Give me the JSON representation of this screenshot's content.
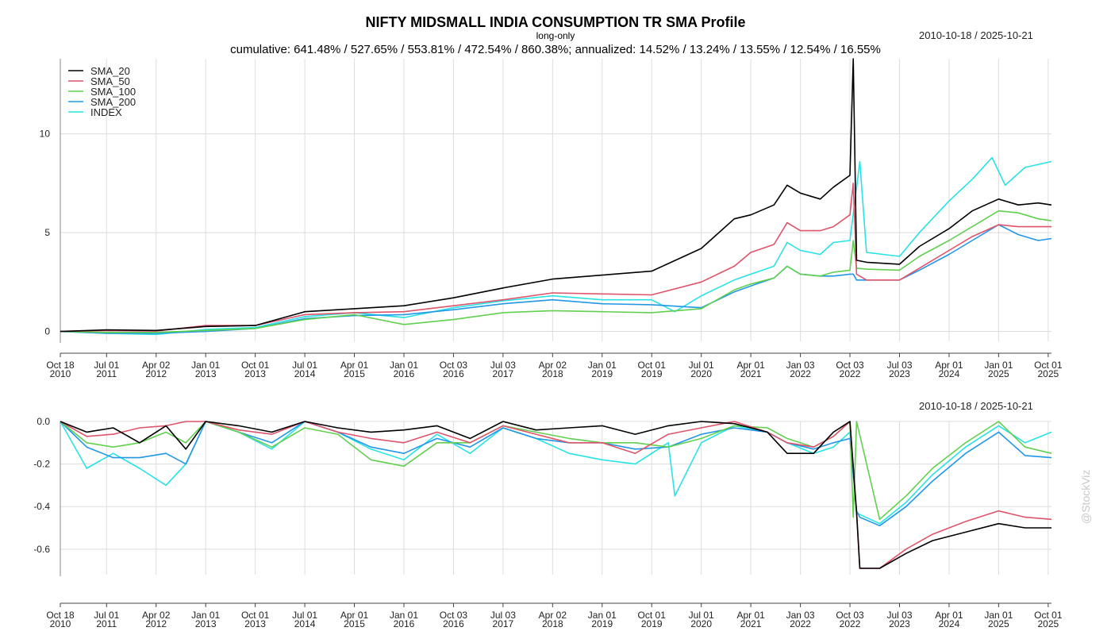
{
  "header": {
    "title": "NIFTY MIDSMALL INDIA CONSUMPTION TR SMA Profile",
    "subtitle": "long-only",
    "stats": "cumulative: 641.48% / 527.65% / 553.81% / 472.54% / 860.38%; annualized: 14.52% / 13.24% / 13.55% / 12.54% / 16.55%",
    "date_range_top": "2010-10-18 / 2025-10-21",
    "date_range_bottom": "2010-10-18 / 2025-10-21",
    "watermark": "@StockViz"
  },
  "colors": {
    "SMA_20": "#000000",
    "SMA_50": "#DF536B",
    "SMA_100": "#61D04F",
    "SMA_200": "#2297E6",
    "INDEX": "#28E2E5",
    "grid": "#dddddd"
  },
  "chart_data": [
    {
      "type": "line",
      "panel": "cumulative",
      "x_tick_labels": [
        [
          "Oct 18",
          "2010"
        ],
        [
          "Jul 01",
          "2011"
        ],
        [
          "Apr 02",
          "2012"
        ],
        [
          "Jan 01",
          "2013"
        ],
        [
          "Oct 01",
          "2013"
        ],
        [
          "Jul 01",
          "2014"
        ],
        [
          "Apr 01",
          "2015"
        ],
        [
          "Jan 01",
          "2016"
        ],
        [
          "Oct 03",
          "2016"
        ],
        [
          "Jul 03",
          "2017"
        ],
        [
          "Apr 02",
          "2018"
        ],
        [
          "Jan 01",
          "2019"
        ],
        [
          "Oct 01",
          "2019"
        ],
        [
          "Jul 01",
          "2020"
        ],
        [
          "Apr 01",
          "2021"
        ],
        [
          "Jan 03",
          "2022"
        ],
        [
          "Oct 03",
          "2022"
        ],
        [
          "Jul 03",
          "2023"
        ],
        [
          "Apr 01",
          "2024"
        ],
        [
          "Jan 01",
          "2025"
        ],
        [
          "Oct 01",
          "2025"
        ]
      ],
      "x_tick_positions": [
        2010.8,
        2011.5,
        2012.25,
        2013.0,
        2013.75,
        2014.5,
        2015.25,
        2016.0,
        2016.75,
        2017.5,
        2018.25,
        2019.0,
        2019.75,
        2020.5,
        2021.25,
        2022.0,
        2022.75,
        2023.5,
        2024.25,
        2025.0,
        2025.75
      ],
      "xlim": [
        2010.8,
        2025.8
      ],
      "y_ticks": [
        0,
        5,
        10
      ],
      "ylim": [
        -0.5,
        13.8
      ],
      "grid": true,
      "legend_position": "top-left",
      "series": [
        {
          "name": "SMA_20",
          "x": [
            2010.8,
            2011.5,
            2012.25,
            2013.0,
            2013.75,
            2014.5,
            2015.25,
            2016.0,
            2016.75,
            2017.5,
            2018.25,
            2019.0,
            2019.75,
            2020.5,
            2021.0,
            2021.25,
            2021.6,
            2021.8,
            2022.0,
            2022.3,
            2022.5,
            2022.75,
            2022.8,
            2022.85,
            2023.0,
            2023.5,
            2023.8,
            2024.25,
            2024.6,
            2025.0,
            2025.3,
            2025.6,
            2025.8
          ],
          "values": [
            0.0,
            0.08,
            0.05,
            0.25,
            0.3,
            1.0,
            1.15,
            1.3,
            1.7,
            2.2,
            2.65,
            2.85,
            3.05,
            4.2,
            5.7,
            5.9,
            6.4,
            7.4,
            7.0,
            6.7,
            7.3,
            7.9,
            13.8,
            3.6,
            3.5,
            3.4,
            4.3,
            5.2,
            6.1,
            6.7,
            6.4,
            6.5,
            6.4
          ]
        },
        {
          "name": "SMA_50",
          "x": [
            2010.8,
            2011.5,
            2012.25,
            2013.0,
            2013.75,
            2014.5,
            2015.25,
            2016.0,
            2016.75,
            2017.5,
            2018.25,
            2019.0,
            2019.75,
            2020.5,
            2021.0,
            2021.25,
            2021.6,
            2021.8,
            2022.0,
            2022.3,
            2022.5,
            2022.75,
            2022.8,
            2022.85,
            2023.0,
            2023.5,
            2023.8,
            2024.25,
            2024.6,
            2025.0,
            2025.3,
            2025.6,
            2025.8
          ],
          "values": [
            0.0,
            0.05,
            0.02,
            0.3,
            0.3,
            0.85,
            0.95,
            1.0,
            1.3,
            1.6,
            1.95,
            1.9,
            1.85,
            2.5,
            3.3,
            4.0,
            4.4,
            5.5,
            5.1,
            5.1,
            5.3,
            5.9,
            7.5,
            2.9,
            2.6,
            2.6,
            3.2,
            4.1,
            4.8,
            5.4,
            5.3,
            5.3,
            5.3
          ]
        },
        {
          "name": "SMA_100",
          "x": [
            2010.8,
            2011.5,
            2012.25,
            2013.0,
            2013.75,
            2014.5,
            2015.25,
            2016.0,
            2016.75,
            2017.5,
            2018.25,
            2019.0,
            2019.75,
            2020.5,
            2021.0,
            2021.25,
            2021.6,
            2021.8,
            2022.0,
            2022.3,
            2022.5,
            2022.75,
            2022.8,
            2022.85,
            2023.0,
            2023.5,
            2023.8,
            2024.25,
            2024.6,
            2025.0,
            2025.3,
            2025.6,
            2025.8
          ],
          "values": [
            0.0,
            -0.05,
            -0.05,
            0.05,
            0.15,
            0.6,
            0.85,
            0.35,
            0.6,
            0.95,
            1.05,
            1.0,
            0.95,
            1.15,
            2.1,
            2.4,
            2.7,
            3.3,
            2.9,
            2.8,
            3.0,
            3.1,
            4.6,
            3.2,
            3.15,
            3.1,
            3.8,
            4.6,
            5.3,
            6.1,
            6.0,
            5.7,
            5.6
          ]
        },
        {
          "name": "SMA_200",
          "x": [
            2010.8,
            2011.5,
            2012.25,
            2013.0,
            2013.75,
            2014.5,
            2015.25,
            2016.0,
            2016.75,
            2017.5,
            2018.25,
            2019.0,
            2019.75,
            2020.5,
            2021.0,
            2021.25,
            2021.6,
            2021.8,
            2022.0,
            2022.3,
            2022.5,
            2022.75,
            2022.8,
            2022.85,
            2023.0,
            2023.5,
            2023.8,
            2024.25,
            2024.6,
            2025.0,
            2025.3,
            2025.6,
            2025.8
          ],
          "values": [
            0.0,
            -0.1,
            -0.1,
            0.0,
            0.15,
            0.65,
            0.8,
            0.85,
            1.1,
            1.4,
            1.6,
            1.4,
            1.35,
            1.2,
            2.0,
            2.3,
            2.7,
            3.3,
            2.9,
            2.8,
            2.8,
            2.9,
            2.9,
            2.6,
            2.6,
            2.6,
            3.1,
            3.9,
            4.6,
            5.4,
            4.9,
            4.6,
            4.7
          ]
        },
        {
          "name": "INDEX",
          "x": [
            2010.8,
            2011.5,
            2012.25,
            2013.0,
            2013.75,
            2014.5,
            2015.25,
            2016.0,
            2016.75,
            2017.5,
            2018.25,
            2019.0,
            2019.75,
            2020.1,
            2020.5,
            2021.0,
            2021.25,
            2021.6,
            2021.8,
            2022.0,
            2022.3,
            2022.5,
            2022.75,
            2022.9,
            2023.0,
            2023.5,
            2023.8,
            2024.25,
            2024.6,
            2024.9,
            2025.1,
            2025.4,
            2025.8
          ],
          "values": [
            0.0,
            -0.1,
            -0.15,
            0.1,
            0.2,
            0.75,
            0.95,
            0.7,
            1.2,
            1.55,
            1.8,
            1.6,
            1.6,
            1.0,
            1.8,
            2.6,
            2.9,
            3.3,
            4.5,
            4.1,
            3.9,
            4.5,
            4.6,
            8.6,
            4.0,
            3.8,
            5.0,
            6.6,
            7.7,
            8.8,
            7.4,
            8.3,
            8.6
          ]
        }
      ]
    },
    {
      "type": "line",
      "panel": "drawdown",
      "x_tick_labels": [
        [
          "Oct 18",
          "2010"
        ],
        [
          "Jul 01",
          "2011"
        ],
        [
          "Apr 02",
          "2012"
        ],
        [
          "Jan 01",
          "2013"
        ],
        [
          "Oct 01",
          "2013"
        ],
        [
          "Jul 01",
          "2014"
        ],
        [
          "Apr 01",
          "2015"
        ],
        [
          "Jan 01",
          "2016"
        ],
        [
          "Oct 03",
          "2016"
        ],
        [
          "Jul 03",
          "2017"
        ],
        [
          "Apr 02",
          "2018"
        ],
        [
          "Jan 01",
          "2019"
        ],
        [
          "Oct 01",
          "2019"
        ],
        [
          "Jul 01",
          "2020"
        ],
        [
          "Apr 01",
          "2021"
        ],
        [
          "Jan 03",
          "2022"
        ],
        [
          "Oct 03",
          "2022"
        ],
        [
          "Jul 03",
          "2023"
        ],
        [
          "Apr 01",
          "2024"
        ],
        [
          "Jan 01",
          "2025"
        ],
        [
          "Oct 01",
          "2025"
        ]
      ],
      "x_tick_positions": [
        2010.8,
        2011.5,
        2012.25,
        2013.0,
        2013.75,
        2014.5,
        2015.25,
        2016.0,
        2016.75,
        2017.5,
        2018.25,
        2019.0,
        2019.75,
        2020.5,
        2021.25,
        2022.0,
        2022.75,
        2023.5,
        2024.25,
        2025.0,
        2025.75
      ],
      "xlim": [
        2010.8,
        2025.8
      ],
      "y_tick_labels": [
        "0.0",
        "-0.2",
        "-0.4",
        "-0.6"
      ],
      "y_ticks": [
        0.0,
        -0.2,
        -0.4,
        -0.6
      ],
      "ylim": [
        -0.72,
        0.0
      ],
      "grid": true,
      "series": [
        {
          "name": "SMA_20",
          "x": [
            2010.8,
            2011.2,
            2011.6,
            2012.0,
            2012.4,
            2012.7,
            2013.0,
            2013.5,
            2014.0,
            2014.5,
            2015.0,
            2015.5,
            2016.0,
            2016.5,
            2017.0,
            2017.5,
            2018.0,
            2018.5,
            2019.0,
            2019.5,
            2020.0,
            2020.5,
            2021.0,
            2021.5,
            2021.8,
            2022.2,
            2022.5,
            2022.75,
            2022.85,
            2022.9,
            2023.2,
            2023.6,
            2024.0,
            2024.5,
            2025.0,
            2025.4,
            2025.8
          ],
          "values": [
            0.0,
            -0.05,
            -0.03,
            -0.1,
            -0.02,
            -0.13,
            0.0,
            -0.02,
            -0.05,
            0.0,
            -0.03,
            -0.05,
            -0.04,
            -0.02,
            -0.08,
            0.0,
            -0.04,
            -0.03,
            -0.02,
            -0.06,
            -0.02,
            0.0,
            -0.01,
            -0.05,
            -0.15,
            -0.15,
            -0.05,
            0.0,
            -0.43,
            -0.69,
            -0.69,
            -0.62,
            -0.56,
            -0.52,
            -0.48,
            -0.5,
            -0.5
          ]
        },
        {
          "name": "SMA_50",
          "x": [
            2010.8,
            2011.2,
            2011.6,
            2012.0,
            2012.4,
            2012.7,
            2013.0,
            2013.5,
            2014.0,
            2014.5,
            2015.0,
            2015.5,
            2016.0,
            2016.5,
            2017.0,
            2017.5,
            2018.0,
            2018.5,
            2019.0,
            2019.5,
            2020.0,
            2020.5,
            2021.0,
            2021.5,
            2021.8,
            2022.2,
            2022.5,
            2022.75,
            2022.85,
            2022.9,
            2023.2,
            2023.6,
            2024.0,
            2024.5,
            2025.0,
            2025.4,
            2025.8
          ],
          "values": [
            0.0,
            -0.07,
            -0.06,
            -0.03,
            -0.02,
            0.0,
            0.0,
            -0.04,
            -0.06,
            0.0,
            -0.05,
            -0.08,
            -0.1,
            -0.05,
            -0.1,
            -0.02,
            -0.06,
            -0.1,
            -0.1,
            -0.15,
            -0.06,
            -0.03,
            0.0,
            -0.05,
            -0.1,
            -0.12,
            -0.07,
            0.0,
            -0.42,
            -0.69,
            -0.69,
            -0.6,
            -0.53,
            -0.47,
            -0.42,
            -0.45,
            -0.46
          ]
        },
        {
          "name": "SMA_100",
          "x": [
            2010.8,
            2011.2,
            2011.6,
            2012.0,
            2012.4,
            2012.7,
            2013.0,
            2013.5,
            2014.0,
            2014.5,
            2015.0,
            2015.5,
            2016.0,
            2016.5,
            2017.0,
            2017.5,
            2018.0,
            2018.5,
            2019.0,
            2019.5,
            2020.0,
            2020.5,
            2021.0,
            2021.5,
            2021.8,
            2022.2,
            2022.5,
            2022.75,
            2022.8,
            2022.85,
            2023.2,
            2023.6,
            2024.0,
            2024.5,
            2025.0,
            2025.4,
            2025.8
          ],
          "values": [
            0.0,
            -0.1,
            -0.12,
            -0.1,
            -0.05,
            -0.1,
            0.0,
            -0.05,
            -0.12,
            -0.03,
            -0.06,
            -0.18,
            -0.21,
            -0.1,
            -0.1,
            -0.02,
            -0.05,
            -0.08,
            -0.1,
            -0.1,
            -0.12,
            -0.08,
            -0.02,
            -0.03,
            -0.08,
            -0.12,
            -0.07,
            0.0,
            -0.45,
            0.0,
            -0.46,
            -0.35,
            -0.22,
            -0.1,
            0.0,
            -0.12,
            -0.15
          ]
        },
        {
          "name": "SMA_200",
          "x": [
            2010.8,
            2011.2,
            2011.6,
            2012.0,
            2012.4,
            2012.7,
            2013.0,
            2013.5,
            2014.0,
            2014.5,
            2015.0,
            2015.5,
            2016.0,
            2016.5,
            2017.0,
            2017.5,
            2018.0,
            2018.5,
            2019.0,
            2019.5,
            2020.0,
            2020.5,
            2021.0,
            2021.5,
            2021.8,
            2022.2,
            2022.5,
            2022.75,
            2022.85,
            2022.9,
            2023.2,
            2023.6,
            2024.0,
            2024.5,
            2025.0,
            2025.4,
            2025.8
          ],
          "values": [
            0.0,
            -0.12,
            -0.17,
            -0.17,
            -0.15,
            -0.2,
            0.0,
            -0.05,
            -0.1,
            0.0,
            -0.05,
            -0.12,
            -0.15,
            -0.08,
            -0.12,
            -0.03,
            -0.08,
            -0.1,
            -0.1,
            -0.13,
            -0.12,
            -0.06,
            -0.03,
            -0.05,
            -0.1,
            -0.13,
            -0.1,
            -0.08,
            -0.42,
            -0.45,
            -0.49,
            -0.4,
            -0.28,
            -0.15,
            -0.05,
            -0.16,
            -0.17
          ]
        },
        {
          "name": "INDEX",
          "x": [
            2010.8,
            2011.2,
            2011.6,
            2012.0,
            2012.4,
            2012.7,
            2013.0,
            2013.5,
            2014.0,
            2014.5,
            2015.0,
            2015.5,
            2016.0,
            2016.5,
            2017.0,
            2017.5,
            2018.0,
            2018.5,
            2019.0,
            2019.5,
            2020.0,
            2020.1,
            2020.5,
            2021.0,
            2021.5,
            2021.8,
            2022.2,
            2022.5,
            2022.75,
            2022.85,
            2023.2,
            2023.6,
            2024.0,
            2024.5,
            2025.0,
            2025.4,
            2025.8
          ],
          "values": [
            0.0,
            -0.22,
            -0.15,
            -0.22,
            -0.3,
            -0.2,
            0.0,
            -0.05,
            -0.13,
            0.0,
            -0.05,
            -0.13,
            -0.18,
            -0.06,
            -0.15,
            -0.03,
            -0.08,
            -0.15,
            -0.18,
            -0.2,
            -0.1,
            -0.35,
            -0.1,
            -0.02,
            -0.05,
            -0.1,
            -0.15,
            -0.12,
            -0.05,
            -0.43,
            -0.48,
            -0.38,
            -0.25,
            -0.12,
            -0.02,
            -0.1,
            -0.05
          ]
        }
      ]
    }
  ]
}
